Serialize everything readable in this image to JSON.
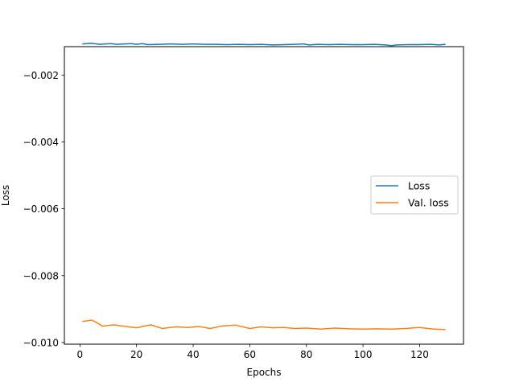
{
  "chart_data": {
    "type": "line",
    "title": "",
    "xlabel": "Epochs",
    "ylabel": "Loss",
    "xlim": [
      -5.5,
      135.5
    ],
    "ylim": [
      -0.01005,
      -0.00115
    ],
    "xticks": [
      0,
      20,
      40,
      60,
      80,
      100,
      120
    ],
    "xtick_labels": [
      "0",
      "20",
      "40",
      "60",
      "80",
      "100",
      "120"
    ],
    "yticks": [
      -0.002,
      -0.004,
      -0.006,
      -0.008,
      -0.01
    ],
    "ytick_labels": [
      "−0.002",
      "−0.004",
      "−0.006",
      "−0.008",
      "−0.010"
    ],
    "grid": false,
    "legend_position": "center-right",
    "series": [
      {
        "name": "Loss",
        "color": "#1f77b4",
        "x": [
          1,
          4,
          5,
          7,
          9,
          11,
          13,
          16,
          18,
          20,
          22,
          24,
          28,
          32,
          36,
          40,
          44,
          48,
          52,
          56,
          60,
          64,
          68,
          72,
          76,
          79,
          81,
          84,
          88,
          92,
          96,
          100,
          104,
          108,
          110,
          112,
          116,
          120,
          124,
          127,
          129
        ],
        "y": [
          -0.00107,
          -0.00105,
          -0.00106,
          -0.00108,
          -0.00107,
          -0.00106,
          -0.00108,
          -0.00107,
          -0.00106,
          -0.00108,
          -0.00106,
          -0.00109,
          -0.00108,
          -0.00107,
          -0.00108,
          -0.00107,
          -0.00108,
          -0.00108,
          -0.00109,
          -0.00108,
          -0.00109,
          -0.00108,
          -0.0011,
          -0.00109,
          -0.00108,
          -0.00107,
          -0.0011,
          -0.00108,
          -0.00109,
          -0.00108,
          -0.00109,
          -0.00109,
          -0.00108,
          -0.0011,
          -0.00112,
          -0.0011,
          -0.00109,
          -0.00109,
          -0.00108,
          -0.0011,
          -0.00108
        ]
      },
      {
        "name": "Val. loss",
        "color": "#ff7f0e",
        "x": [
          1,
          4,
          5,
          8,
          12,
          16,
          20,
          25,
          29,
          34,
          38,
          42,
          46,
          50,
          55,
          60,
          64,
          68,
          72,
          76,
          80,
          85,
          90,
          95,
          100,
          105,
          110,
          115,
          120,
          125,
          129
        ],
        "y": [
          -0.00937,
          -0.00933,
          -0.00936,
          -0.00951,
          -0.00947,
          -0.00952,
          -0.00956,
          -0.00947,
          -0.00958,
          -0.00953,
          -0.00955,
          -0.00952,
          -0.00958,
          -0.00951,
          -0.00948,
          -0.00958,
          -0.00953,
          -0.00956,
          -0.00955,
          -0.00958,
          -0.00957,
          -0.0096,
          -0.00957,
          -0.00959,
          -0.0096,
          -0.00959,
          -0.0096,
          -0.00958,
          -0.00955,
          -0.0096,
          -0.00961
        ]
      }
    ]
  }
}
